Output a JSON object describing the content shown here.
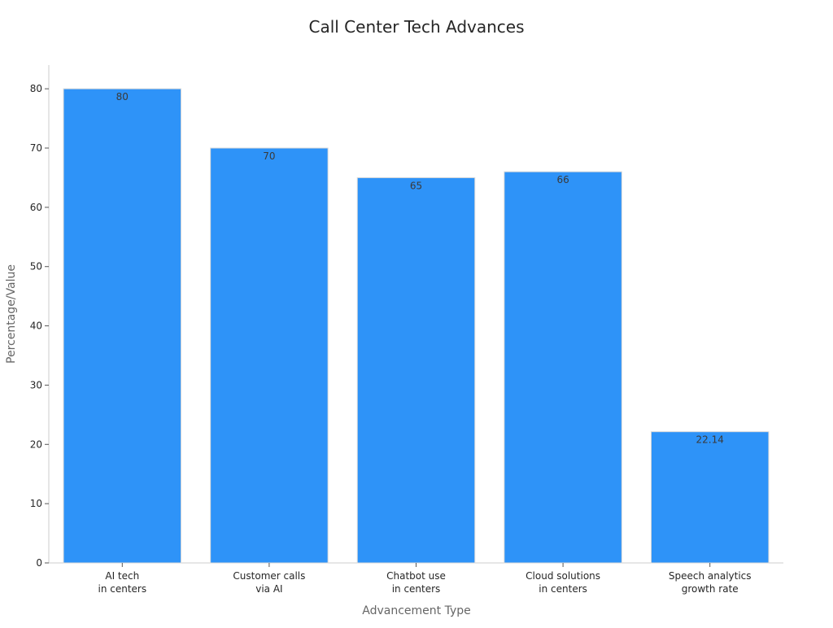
{
  "chart_data": {
    "type": "bar",
    "title": "Call Center Tech Advances",
    "xlabel": "Advancement Type",
    "ylabel": "Percentage/Value",
    "categories": [
      [
        "AI tech",
        "in centers"
      ],
      [
        "Customer calls",
        "via AI"
      ],
      [
        "Chatbot use",
        "in centers"
      ],
      [
        "Cloud solutions",
        "in centers"
      ],
      [
        "Speech analytics",
        "growth rate"
      ]
    ],
    "values": [
      80,
      70,
      65,
      66,
      22.14
    ],
    "value_labels": [
      "80",
      "70",
      "65",
      "66",
      "22.14"
    ],
    "ylim": [
      0,
      84
    ],
    "yticks": [
      0,
      10,
      20,
      30,
      40,
      50,
      60,
      70,
      80
    ],
    "grid": false,
    "bar_color": "#2e93f8"
  }
}
